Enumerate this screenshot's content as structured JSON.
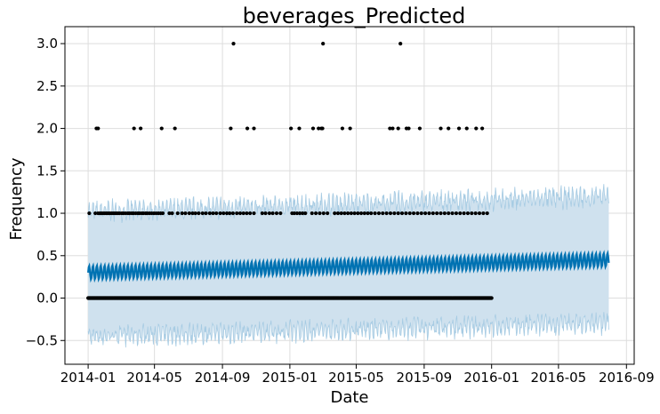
{
  "chart_data": {
    "type": "line",
    "title": "beverages_Predicted",
    "xlabel": "Date",
    "ylabel": "Frequency",
    "grid": true,
    "x_range": [
      "2013-11-20",
      "2016-09-15"
    ],
    "ylim": [
      -0.78,
      3.2
    ],
    "x_ticks": [
      "2014-01",
      "2014-05",
      "2014-09",
      "2015-01",
      "2015-05",
      "2015-09",
      "2016-01",
      "2016-05",
      "2016-09"
    ],
    "y_ticks": [
      "−0.5",
      "0.0",
      "0.5",
      "1.0",
      "1.5",
      "2.0",
      "2.5",
      "3.0"
    ],
    "forecast": {
      "start": "2014-01-01",
      "end": "2016-07-31",
      "yhat_start": 0.3,
      "yhat_end": 0.45,
      "weekly_amplitude": 0.08,
      "upper_start": 1.02,
      "upper_end": 1.2,
      "lower_start": -0.45,
      "lower_end": -0.3,
      "band_color": "#cfe1ee",
      "band_edge_color": "#a6cbe3",
      "line_color": "#0072b2"
    },
    "observed": {
      "color": "#000000",
      "start": "2014-01-01",
      "end": "2016-01-01",
      "values_1_dates": [
        "2014-01-03",
        "2014-01-14",
        "2014-01-19",
        "2014-01-22",
        "2014-01-25",
        "2014-01-28",
        "2014-01-31",
        "2014-02-03",
        "2014-02-06",
        "2014-02-09",
        "2014-02-12",
        "2014-02-15",
        "2014-02-18",
        "2014-02-21",
        "2014-02-24",
        "2014-02-27",
        "2014-03-03",
        "2014-03-06",
        "2014-03-10",
        "2014-03-14",
        "2014-03-17",
        "2014-03-21",
        "2014-03-24",
        "2014-03-28",
        "2014-04-01",
        "2014-04-04",
        "2014-04-08",
        "2014-04-11",
        "2014-04-15",
        "2014-04-18",
        "2014-04-22",
        "2014-04-26",
        "2014-04-30",
        "2014-05-04",
        "2014-05-08",
        "2014-05-12",
        "2014-05-16",
        "2014-05-28",
        "2014-06-02",
        "2014-06-12",
        "2014-06-20",
        "2014-06-26",
        "2014-07-03",
        "2014-07-09",
        "2014-07-14",
        "2014-07-20",
        "2014-07-27",
        "2014-08-02",
        "2014-08-09",
        "2014-08-15",
        "2014-08-21",
        "2014-08-28",
        "2014-09-03",
        "2014-09-09",
        "2014-09-14",
        "2014-09-20",
        "2014-09-27",
        "2014-10-03",
        "2014-10-09",
        "2014-10-15",
        "2014-10-21",
        "2014-10-28",
        "2014-11-12",
        "2014-11-18",
        "2014-11-25",
        "2014-12-01",
        "2014-12-08",
        "2014-12-15",
        "2015-01-05",
        "2015-01-09",
        "2015-01-14",
        "2015-01-19",
        "2015-01-24",
        "2015-01-29",
        "2015-02-10",
        "2015-02-17",
        "2015-02-24",
        "2015-03-03",
        "2015-03-10",
        "2015-03-23",
        "2015-03-29",
        "2015-04-04",
        "2015-04-10",
        "2015-04-16",
        "2015-04-22",
        "2015-04-28",
        "2015-05-04",
        "2015-05-10",
        "2015-05-16",
        "2015-05-22",
        "2015-05-28",
        "2015-06-04",
        "2015-06-11",
        "2015-06-18",
        "2015-06-25",
        "2015-07-02",
        "2015-07-09",
        "2015-07-16",
        "2015-07-23",
        "2015-07-30",
        "2015-08-06",
        "2015-08-13",
        "2015-08-20",
        "2015-08-27",
        "2015-09-03",
        "2015-09-10",
        "2015-09-17",
        "2015-09-24",
        "2015-10-01",
        "2015-10-08",
        "2015-10-15",
        "2015-10-22",
        "2015-10-29",
        "2015-11-05",
        "2015-11-12",
        "2015-11-19",
        "2015-11-26",
        "2015-12-03",
        "2015-12-10",
        "2015-12-17",
        "2015-12-24"
      ],
      "values_2_dates": [
        "2014-01-16",
        "2014-01-19",
        "2014-03-25",
        "2014-04-06",
        "2014-05-14",
        "2014-06-07",
        "2014-09-16",
        "2014-10-16",
        "2014-10-28",
        "2015-01-03",
        "2015-01-18",
        "2015-02-12",
        "2015-02-22",
        "2015-02-27",
        "2015-03-01",
        "2015-04-06",
        "2015-04-20",
        "2015-07-01",
        "2015-07-06",
        "2015-07-16",
        "2015-07-31",
        "2015-08-04",
        "2015-08-24",
        "2015-10-01",
        "2015-10-15",
        "2015-11-03",
        "2015-11-17",
        "2015-12-04",
        "2015-12-15"
      ],
      "values_3_dates": [
        "2014-09-21",
        "2015-03-02",
        "2015-07-20"
      ]
    }
  }
}
